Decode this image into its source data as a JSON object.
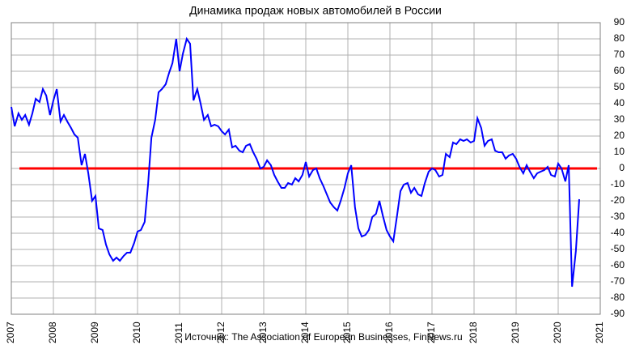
{
  "chart_data": {
    "type": "line",
    "title": "Динамика продаж новых автомобилей в России",
    "source": "Источник: The Association of European Businesses, FinNews.ru",
    "x": [
      2007.0,
      2007.08,
      2007.17,
      2007.25,
      2007.33,
      2007.42,
      2007.5,
      2007.58,
      2007.67,
      2007.75,
      2007.83,
      2007.92,
      2008.0,
      2008.08,
      2008.17,
      2008.25,
      2008.33,
      2008.42,
      2008.5,
      2008.58,
      2008.67,
      2008.75,
      2008.83,
      2008.92,
      2009.0,
      2009.08,
      2009.17,
      2009.25,
      2009.33,
      2009.42,
      2009.5,
      2009.58,
      2009.67,
      2009.75,
      2009.83,
      2009.92,
      2010.0,
      2010.08,
      2010.17,
      2010.25,
      2010.33,
      2010.42,
      2010.5,
      2010.58,
      2010.67,
      2010.75,
      2010.83,
      2010.92,
      2011.0,
      2011.08,
      2011.17,
      2011.25,
      2011.33,
      2011.42,
      2011.5,
      2011.58,
      2011.67,
      2011.75,
      2011.83,
      2011.92,
      2012.0,
      2012.08,
      2012.17,
      2012.25,
      2012.33,
      2012.42,
      2012.5,
      2012.58,
      2012.67,
      2012.75,
      2012.83,
      2012.92,
      2013.0,
      2013.08,
      2013.17,
      2013.25,
      2013.33,
      2013.42,
      2013.5,
      2013.58,
      2013.67,
      2013.75,
      2013.83,
      2013.92,
      2014.0,
      2014.08,
      2014.17,
      2014.25,
      2014.33,
      2014.42,
      2014.5,
      2014.58,
      2014.67,
      2014.75,
      2014.83,
      2014.92,
      2015.0,
      2015.08,
      2015.17,
      2015.25,
      2015.33,
      2015.42,
      2015.5,
      2015.58,
      2015.67,
      2015.75,
      2015.83,
      2015.92,
      2016.0,
      2016.08,
      2016.17,
      2016.25,
      2016.33,
      2016.42,
      2016.5,
      2016.58,
      2016.67,
      2016.75,
      2016.83,
      2016.92,
      2017.0,
      2017.08,
      2017.17,
      2017.25,
      2017.33,
      2017.42,
      2017.5,
      2017.58,
      2017.67,
      2017.75,
      2017.83,
      2017.92,
      2018.0,
      2018.08,
      2018.17,
      2018.25,
      2018.33,
      2018.42,
      2018.5,
      2018.58,
      2018.67,
      2018.75,
      2018.83,
      2018.92,
      2019.0,
      2019.08,
      2019.17,
      2019.25,
      2019.33,
      2019.42,
      2019.5,
      2019.58,
      2019.67,
      2019.75,
      2019.83,
      2019.92,
      2020.0,
      2020.08,
      2020.17,
      2020.25,
      2020.33,
      2020.42,
      2020.5
    ],
    "series": [
      {
        "color": "#0000ff",
        "values": [
          38,
          26,
          34,
          30,
          33,
          27,
          34,
          43,
          41,
          49,
          45,
          33,
          42,
          49,
          29,
          33,
          29,
          25,
          21,
          19,
          2,
          9,
          -3,
          -20,
          -17,
          -37,
          -38,
          -47,
          -53,
          -57,
          -55,
          -57,
          -54,
          -52,
          -52,
          -46,
          -39,
          -38,
          -33,
          -10,
          19,
          30,
          47,
          49,
          52,
          59,
          65,
          80,
          60,
          71,
          80,
          77,
          42,
          49,
          40,
          30,
          33,
          26,
          27,
          26,
          23,
          21,
          24,
          13,
          14,
          11,
          10,
          14,
          15,
          10,
          6,
          0,
          1,
          5,
          2,
          -4,
          -8,
          -12,
          -12,
          -9,
          -10,
          -6,
          -8,
          -4,
          4,
          -5,
          -1,
          0,
          -6,
          -11,
          -16,
          -21,
          -24,
          -26,
          -20,
          -12,
          -3,
          2,
          -24,
          -37,
          -42,
          -41,
          -38,
          -30,
          -28,
          -20,
          -29,
          -38,
          -42,
          -45,
          -29,
          -14,
          -10,
          -9,
          -15,
          -12,
          -16,
          -17,
          -9,
          -2,
          0,
          -1,
          -5,
          -4,
          9,
          7,
          16,
          15,
          18,
          17,
          18,
          16,
          17,
          31,
          25,
          14,
          17,
          18,
          11,
          10,
          10,
          6,
          8,
          9,
          6,
          1,
          -3,
          2,
          -2,
          -6,
          -3,
          -2,
          -1,
          1,
          -4,
          -5,
          3,
          0,
          -8,
          2,
          -73,
          -51,
          -19
        ]
      }
    ],
    "reference_line": {
      "value": 0,
      "color": "#ff0000"
    },
    "xlim": [
      2007,
      2021
    ],
    "xticks": [
      2007,
      2008,
      2009,
      2010,
      2011,
      2012,
      2013,
      2014,
      2015,
      2016,
      2017,
      2018,
      2019,
      2020,
      2021
    ],
    "ylim": [
      -90,
      90
    ],
    "yticks": [
      -90,
      -80,
      -70,
      -60,
      -50,
      -40,
      -30,
      -20,
      -10,
      0,
      10,
      20,
      30,
      40,
      50,
      60,
      70,
      80,
      90
    ],
    "grid": true
  }
}
